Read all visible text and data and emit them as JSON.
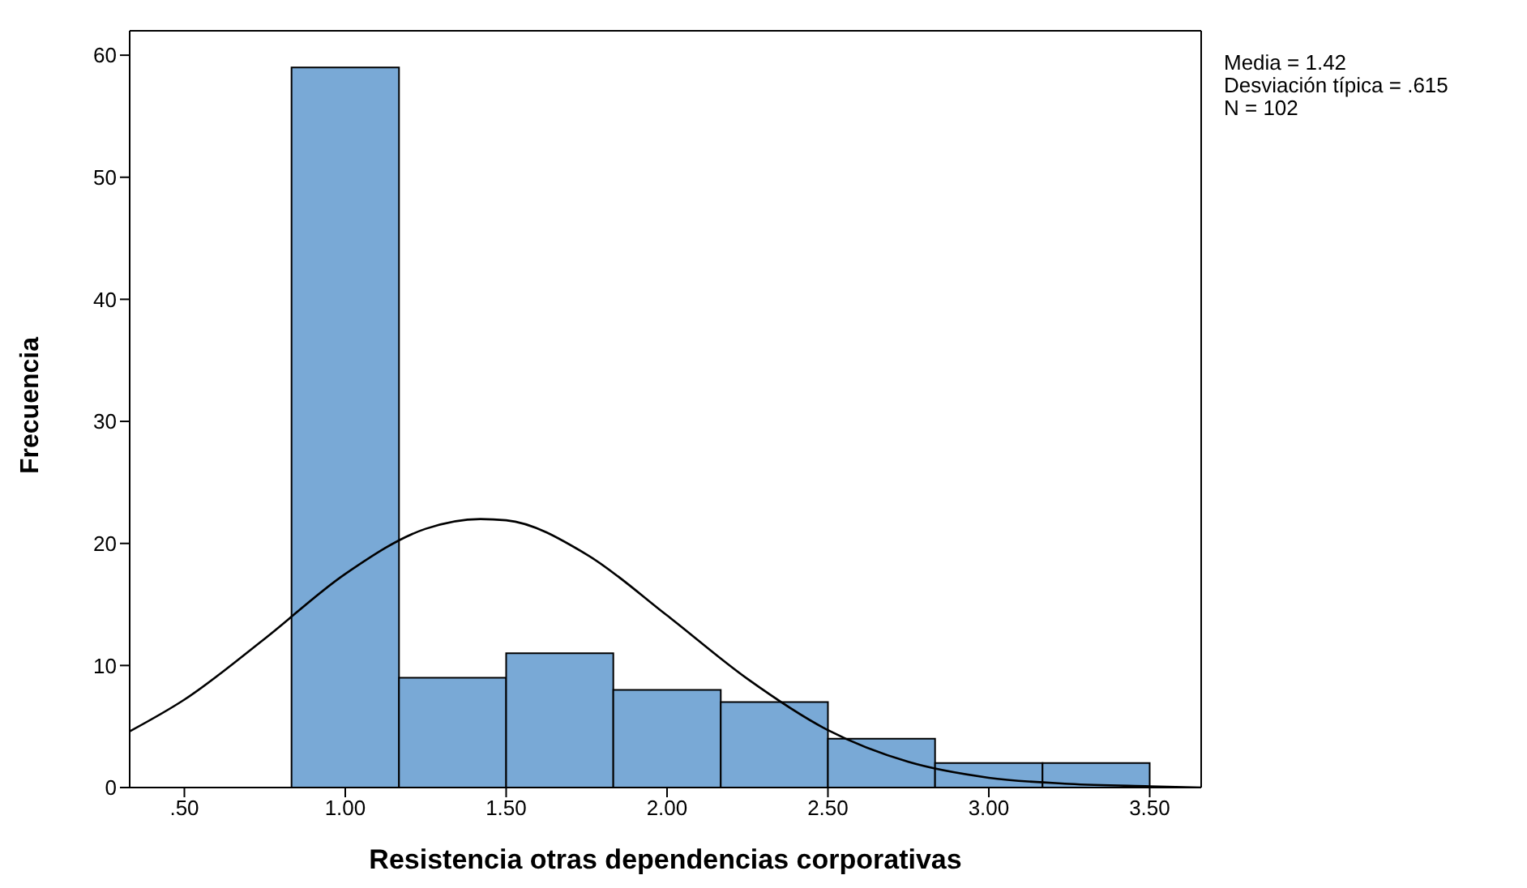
{
  "chart_data": {
    "type": "histogram",
    "xlabel": "Resistencia otras dependencias corporativas",
    "ylabel": "Frecuencia",
    "annotations": [
      "Media = 1.42",
      "Desviación típica = .615",
      "N = 102"
    ],
    "bins": [
      0.833,
      1.167,
      1.5,
      1.833,
      2.167,
      2.5,
      2.833,
      3.167,
      3.5
    ],
    "values": [
      59,
      9,
      11,
      8,
      7,
      4,
      2,
      2
    ],
    "color": "#79a9d6",
    "series": [
      {
        "type": "line",
        "x": [
          0.33,
          0.5,
          0.75,
          1.0,
          1.25,
          1.42,
          1.5,
          1.75,
          2.0,
          2.25,
          2.5,
          2.75,
          3.0,
          3.25,
          3.5,
          3.66
        ],
        "values": [
          4.6,
          7.2,
          12.2,
          17.5,
          21.2,
          22,
          21.9,
          19.1,
          14.1,
          8.9,
          4.7,
          2.1,
          0.8,
          0.3,
          0.1,
          0
        ],
        "color": "#000000"
      }
    ],
    "xlim": [
      0.33,
      3.66
    ],
    "xticks": [
      {
        "value": 0.5,
        "label": ".50"
      },
      {
        "value": 1,
        "label": "1.00"
      },
      {
        "value": 1.5,
        "label": "1.50"
      },
      {
        "value": 2,
        "label": "2.00"
      },
      {
        "value": 2.5,
        "label": "2.50"
      },
      {
        "value": 3,
        "label": "3.00"
      },
      {
        "value": 3.5,
        "label": "3.50"
      }
    ],
    "ylim": [
      0,
      62
    ],
    "yticks": [
      0,
      10,
      20,
      30,
      40,
      50,
      60
    ],
    "grid": false,
    "marker": "none"
  }
}
